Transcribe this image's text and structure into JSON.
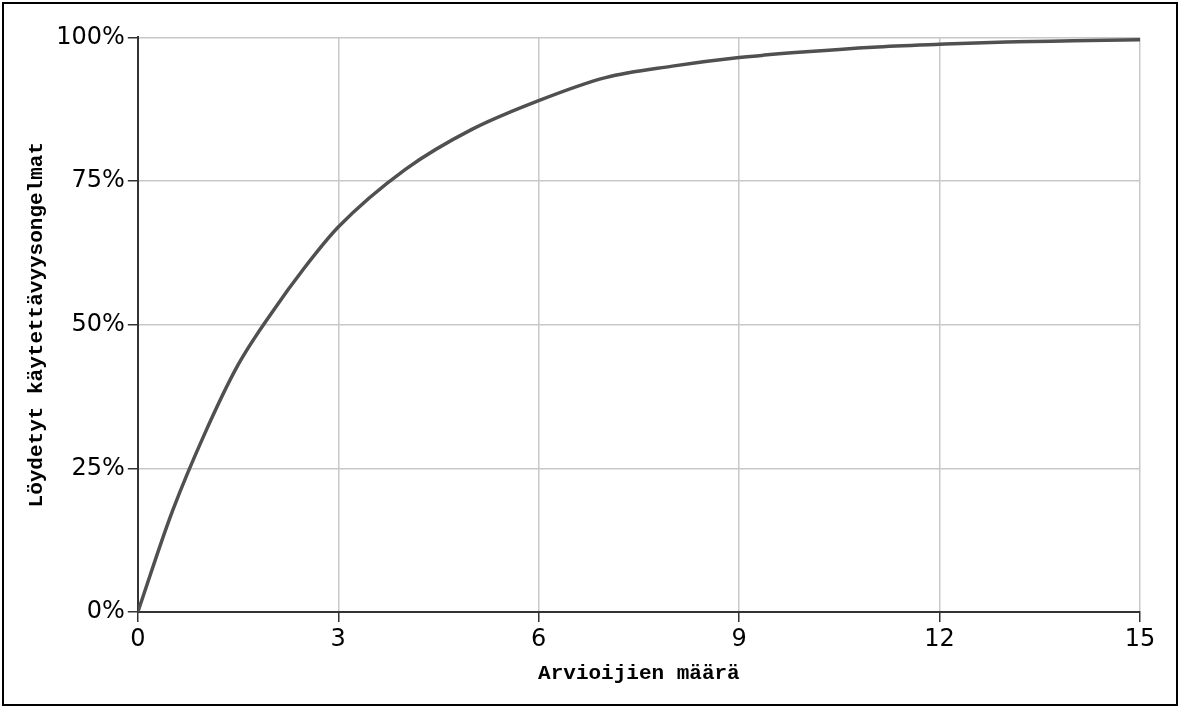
{
  "chart_data": {
    "type": "line",
    "xlabel": "Arvioijien määrä",
    "ylabel": "Löydetyt käytettävyysongelmat",
    "x": [
      0,
      0.5,
      1,
      1.5,
      2,
      2.5,
      3,
      4,
      5,
      6,
      7,
      8,
      9,
      10,
      11,
      12,
      13,
      14,
      15
    ],
    "series": [
      {
        "color": "#505050",
        "values": [
          0,
          17,
          31,
          43,
          52,
          60,
          67,
          77,
          84,
          89,
          93,
          95,
          96.5,
          97.5,
          98.3,
          98.8,
          99.2,
          99.4,
          99.6
        ]
      }
    ],
    "xlim": [
      0,
      15
    ],
    "xticks": [
      0,
      3,
      6,
      9,
      12,
      15
    ],
    "ylim": [
      0,
      100
    ],
    "yticks": [
      {
        "value": 0,
        "label": "0%"
      },
      {
        "value": 25,
        "label": "25%"
      },
      {
        "value": 50,
        "label": "50%"
      },
      {
        "value": 75,
        "label": "75%"
      },
      {
        "value": 100,
        "label": "100%"
      }
    ],
    "grid": true,
    "legend": false,
    "marker": "none",
    "line_style": "solid"
  }
}
